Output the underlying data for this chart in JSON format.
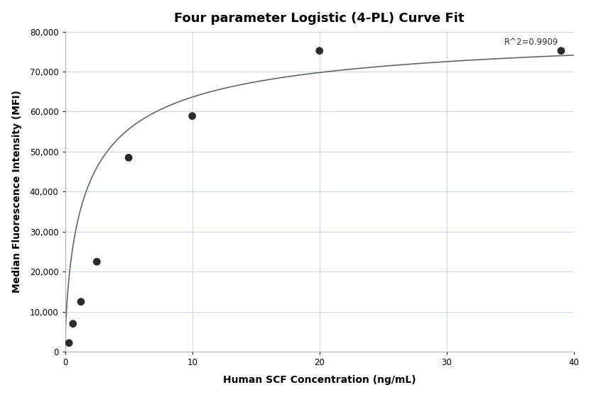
{
  "title": "Four parameter Logistic (4-PL) Curve Fit",
  "xlabel": "Human SCF Concentration (ng/mL)",
  "ylabel": "Median Fluorescence Intensity (MFI)",
  "scatter_x": [
    0.3125,
    0.625,
    1.25,
    2.5,
    5.0,
    10.0,
    20.0,
    39.0
  ],
  "scatter_y": [
    2200,
    7000,
    12500,
    22500,
    48500,
    58900,
    75200,
    75200
  ],
  "scatter_color": "#2b2b2b",
  "scatter_size": 60,
  "curve_color": "#666666",
  "curve_linewidth": 1.2,
  "xlim": [
    0,
    40
  ],
  "ylim": [
    0,
    80000
  ],
  "yticks": [
    0,
    10000,
    20000,
    30000,
    40000,
    50000,
    60000,
    70000,
    80000
  ],
  "xticks": [
    0,
    10,
    20,
    30,
    40
  ],
  "r2_text": "R^2=0.9909",
  "r2_x": 34.5,
  "r2_y": 78500,
  "grid_color": "#ccd5e8",
  "bg_color": "#ffffff",
  "title_fontsize": 13,
  "label_fontsize": 10,
  "tick_fontsize": 8.5,
  "4pl_A": 500,
  "4pl_B": 0.72,
  "4pl_C": 1.8,
  "4pl_D": 82000
}
